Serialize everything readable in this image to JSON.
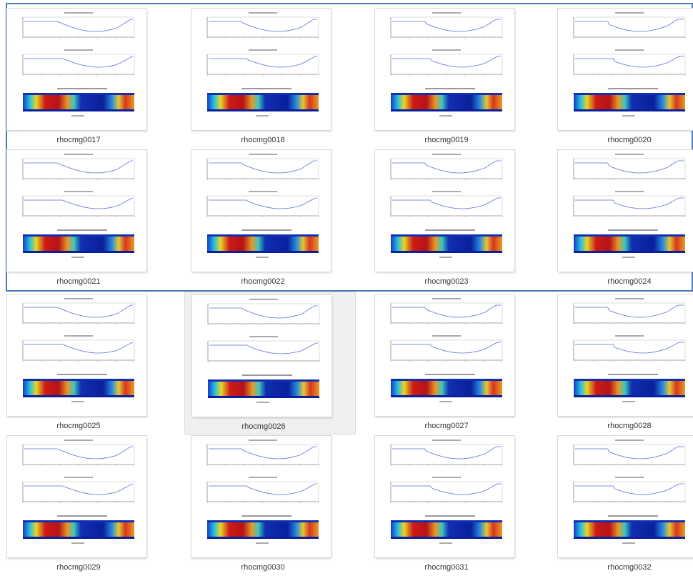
{
  "files": [
    {
      "name": "rhocmg0017",
      "selected": true
    },
    {
      "name": "rhocmg0018",
      "selected": true
    },
    {
      "name": "rhocmg0019",
      "selected": true
    },
    {
      "name": "rhocmg0020",
      "selected": true
    },
    {
      "name": "rhocmg0021",
      "selected": true
    },
    {
      "name": "rhocmg0022",
      "selected": true
    },
    {
      "name": "rhocmg0023",
      "selected": true
    },
    {
      "name": "rhocmg0024",
      "selected": true
    },
    {
      "name": "rhocmg0025",
      "selected": false
    },
    {
      "name": "rhocmg0026",
      "selected": false,
      "hover": true
    },
    {
      "name": "rhocmg0027",
      "selected": false
    },
    {
      "name": "rhocmg0028",
      "selected": false
    },
    {
      "name": "rhocmg0029",
      "selected": false
    },
    {
      "name": "rhocmg0030",
      "selected": false
    },
    {
      "name": "rhocmg0031",
      "selected": false
    },
    {
      "name": "rhocmg0032",
      "selected": false
    }
  ],
  "colors": {
    "selection_border": "#4a79bf",
    "hover_bg": "#f0f0f0"
  }
}
